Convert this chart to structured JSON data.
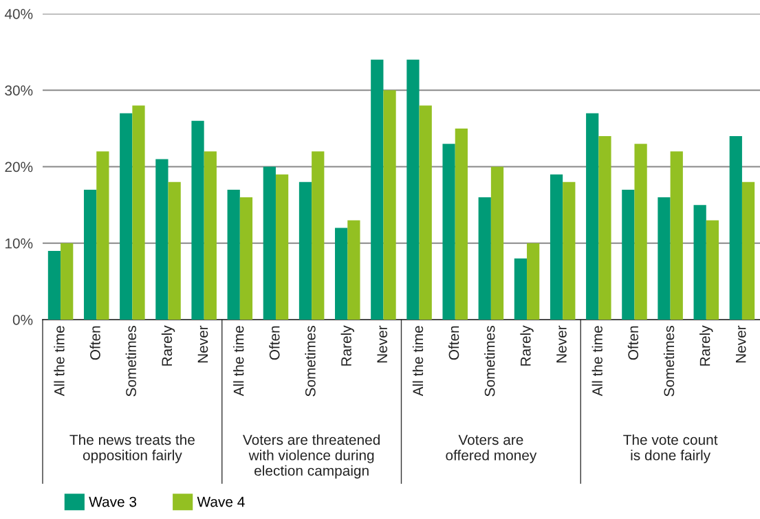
{
  "chart_data": {
    "type": "bar",
    "categories": [
      "All the time",
      "Often",
      "Sometimes",
      "Rarely",
      "Never",
      "All the time",
      "Often",
      "Sometimes",
      "Rarely",
      "Never",
      "All the time",
      "Often",
      "Sometimes",
      "Rarely",
      "Never",
      "All the time",
      "Often",
      "Sometimes",
      "Rarely",
      "Never"
    ],
    "series": [
      {
        "name": "Wave 3",
        "color": "#009b77",
        "values": [
          9,
          17,
          27,
          21,
          26,
          17,
          20,
          18,
          12,
          34,
          34,
          23,
          16,
          8,
          19,
          27,
          17,
          16,
          15,
          24
        ]
      },
      {
        "name": "Wave 4",
        "color": "#93c022",
        "values": [
          10,
          22,
          28,
          18,
          22,
          16,
          19,
          22,
          13,
          30,
          28,
          25,
          20,
          10,
          18,
          24,
          23,
          22,
          13,
          18
        ]
      }
    ],
    "annotations": [
      "The news treats the\nopposition fairly",
      "Voters are threatened\nwith violence during\nelection campaign",
      "Voters are\noffered money",
      "The vote count\nis done fairly"
    ],
    "ylim": [
      0,
      40
    ],
    "yticks": [
      {
        "value": 0,
        "label": "0%"
      },
      {
        "value": 10,
        "label": "10%"
      },
      {
        "value": 20,
        "label": "20%"
      },
      {
        "value": 30,
        "label": "30%"
      },
      {
        "value": 40,
        "label": "40%"
      }
    ],
    "grid": "y",
    "legend": "bottom left"
  }
}
